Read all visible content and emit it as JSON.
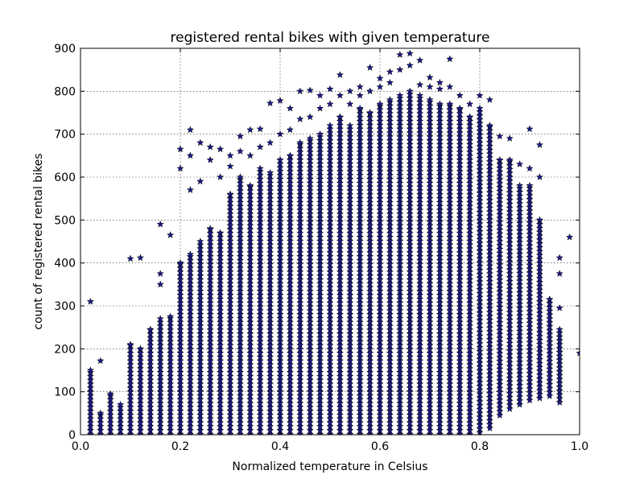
{
  "chart_data": {
    "type": "scatter",
    "title": "registered rental bikes with given temperature",
    "xlabel": "Normalized temperature in Celsius",
    "ylabel": "count of registered rental bikes",
    "xlim": [
      0.0,
      1.0
    ],
    "ylim": [
      0,
      900
    ],
    "x_ticks": [
      "0.0",
      "0.2",
      "0.4",
      "0.6",
      "0.8",
      "1.0"
    ],
    "y_ticks": [
      "0",
      "100",
      "200",
      "300",
      "400",
      "500",
      "600",
      "700",
      "800",
      "900"
    ],
    "grid": true,
    "marker": "star",
    "marker_color": "#1a1a8c",
    "columns": [
      {
        "x": 0.02,
        "ymin": 1,
        "ymax": 150,
        "outliers": [
          310
        ]
      },
      {
        "x": 0.04,
        "ymin": 1,
        "ymax": 50,
        "outliers": [
          172
        ]
      },
      {
        "x": 0.06,
        "ymin": 1,
        "ymax": 95
      },
      {
        "x": 0.08,
        "ymin": 1,
        "ymax": 70
      },
      {
        "x": 0.1,
        "ymin": 1,
        "ymax": 210,
        "outliers": [
          410
        ]
      },
      {
        "x": 0.12,
        "ymin": 1,
        "ymax": 200,
        "outliers": [
          412
        ]
      },
      {
        "x": 0.14,
        "ymin": 1,
        "ymax": 245
      },
      {
        "x": 0.16,
        "ymin": 1,
        "ymax": 270,
        "outliers": [
          350,
          375,
          490
        ]
      },
      {
        "x": 0.18,
        "ymin": 1,
        "ymax": 275,
        "outliers": [
          465
        ]
      },
      {
        "x": 0.2,
        "ymin": 1,
        "ymax": 400,
        "outliers": [
          620,
          665
        ]
      },
      {
        "x": 0.22,
        "ymin": 1,
        "ymax": 420,
        "outliers": [
          570,
          650,
          710
        ]
      },
      {
        "x": 0.24,
        "ymin": 1,
        "ymax": 450,
        "outliers": [
          590,
          680
        ]
      },
      {
        "x": 0.26,
        "ymin": 1,
        "ymax": 480,
        "outliers": [
          640,
          670
        ]
      },
      {
        "x": 0.28,
        "ymin": 1,
        "ymax": 470,
        "outliers": [
          600,
          665
        ]
      },
      {
        "x": 0.3,
        "ymin": 1,
        "ymax": 560,
        "outliers": [
          625,
          650
        ]
      },
      {
        "x": 0.32,
        "ymin": 1,
        "ymax": 600,
        "outliers": [
          660,
          695
        ]
      },
      {
        "x": 0.34,
        "ymin": 1,
        "ymax": 580,
        "outliers": [
          650,
          710
        ]
      },
      {
        "x": 0.36,
        "ymin": 1,
        "ymax": 620,
        "outliers": [
          670,
          712
        ]
      },
      {
        "x": 0.38,
        "ymin": 1,
        "ymax": 610,
        "outliers": [
          680,
          772
        ]
      },
      {
        "x": 0.4,
        "ymin": 1,
        "ymax": 640,
        "outliers": [
          700,
          778
        ]
      },
      {
        "x": 0.42,
        "ymin": 1,
        "ymax": 650,
        "outliers": [
          710,
          760
        ]
      },
      {
        "x": 0.44,
        "ymin": 1,
        "ymax": 680,
        "outliers": [
          735,
          800
        ]
      },
      {
        "x": 0.46,
        "ymin": 1,
        "ymax": 690,
        "outliers": [
          740,
          802
        ]
      },
      {
        "x": 0.48,
        "ymin": 1,
        "ymax": 700,
        "outliers": [
          760,
          790
        ]
      },
      {
        "x": 0.5,
        "ymin": 1,
        "ymax": 720,
        "outliers": [
          770,
          805
        ]
      },
      {
        "x": 0.52,
        "ymin": 1,
        "ymax": 740,
        "outliers": [
          790,
          838
        ]
      },
      {
        "x": 0.54,
        "ymin": 1,
        "ymax": 720,
        "outliers": [
          770,
          800
        ]
      },
      {
        "x": 0.56,
        "ymin": 1,
        "ymax": 760,
        "outliers": [
          790,
          810
        ]
      },
      {
        "x": 0.58,
        "ymin": 1,
        "ymax": 750,
        "outliers": [
          800,
          855
        ]
      },
      {
        "x": 0.6,
        "ymin": 1,
        "ymax": 770,
        "outliers": [
          810,
          830
        ]
      },
      {
        "x": 0.62,
        "ymin": 1,
        "ymax": 780,
        "outliers": [
          820,
          845
        ]
      },
      {
        "x": 0.64,
        "ymin": 1,
        "ymax": 790,
        "outliers": [
          850,
          885
        ]
      },
      {
        "x": 0.66,
        "ymin": 1,
        "ymax": 800,
        "outliers": [
          860,
          888
        ]
      },
      {
        "x": 0.68,
        "ymin": 1,
        "ymax": 790,
        "outliers": [
          815,
          872
        ]
      },
      {
        "x": 0.7,
        "ymin": 1,
        "ymax": 780,
        "outliers": [
          810,
          832
        ]
      },
      {
        "x": 0.72,
        "ymin": 1,
        "ymax": 770,
        "outliers": [
          805,
          820
        ]
      },
      {
        "x": 0.74,
        "ymin": 1,
        "ymax": 770,
        "outliers": [
          810,
          875
        ]
      },
      {
        "x": 0.76,
        "ymin": 1,
        "ymax": 760,
        "outliers": [
          790
        ]
      },
      {
        "x": 0.78,
        "ymin": 1,
        "ymax": 740,
        "outliers": [
          770
        ]
      },
      {
        "x": 0.8,
        "ymin": 5,
        "ymax": 760,
        "outliers": [
          790
        ]
      },
      {
        "x": 0.82,
        "ymin": 15,
        "ymax": 720,
        "outliers": [
          780
        ]
      },
      {
        "x": 0.84,
        "ymin": 45,
        "ymax": 640,
        "outliers": [
          695
        ]
      },
      {
        "x": 0.86,
        "ymin": 60,
        "ymax": 640,
        "outliers": [
          690
        ]
      },
      {
        "x": 0.88,
        "ymin": 70,
        "ymax": 580,
        "outliers": [
          630
        ]
      },
      {
        "x": 0.9,
        "ymin": 80,
        "ymax": 580,
        "outliers": [
          620,
          712
        ]
      },
      {
        "x": 0.92,
        "ymin": 85,
        "ymax": 500,
        "outliers": [
          600,
          675
        ]
      },
      {
        "x": 0.94,
        "ymin": 90,
        "ymax": 315
      },
      {
        "x": 0.96,
        "ymin": 75,
        "ymax": 245,
        "outliers": [
          295,
          375,
          412
        ]
      },
      {
        "x": 0.98,
        "ymin": 460,
        "ymax": 460
      },
      {
        "x": 1.0,
        "ymin": 190,
        "ymax": 190
      }
    ]
  }
}
